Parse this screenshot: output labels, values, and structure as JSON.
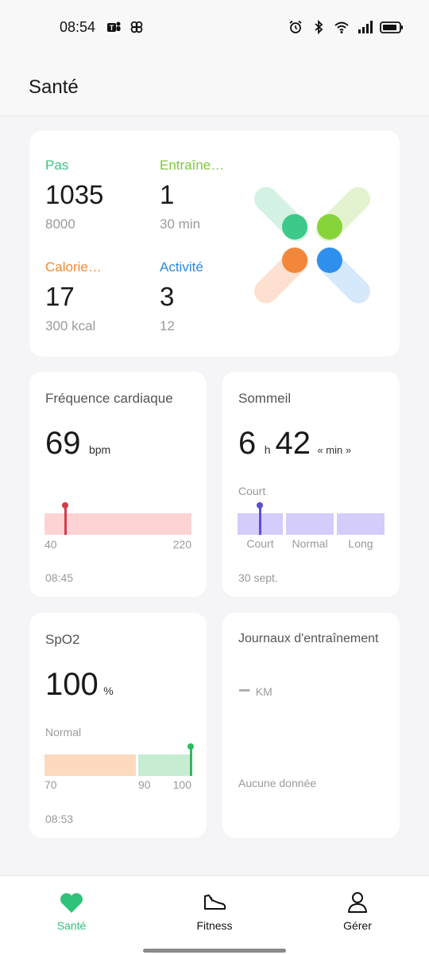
{
  "status_bar": {
    "time": "08:54",
    "icons": [
      "teams-icon",
      "pinwheel-icon",
      "alarm-icon",
      "bluetooth-icon",
      "wifi-icon",
      "signal-icon",
      "battery-icon"
    ]
  },
  "header": {
    "title": "Santé"
  },
  "summary": {
    "steps": {
      "label": "Pas",
      "value": "1035",
      "goal": "8000",
      "color": "#3fbf7f"
    },
    "training": {
      "label": "Entraîne…",
      "value": "1",
      "goal": "30 min",
      "color": "#7dc93c"
    },
    "calories": {
      "label": "Calorie…",
      "value": "17",
      "goal": "300 kcal",
      "color": "#f08a35"
    },
    "activity": {
      "label": "Activité",
      "value": "3",
      "goal": "12",
      "color": "#2b8ae2"
    }
  },
  "heart_rate": {
    "title": "Fréquence cardiaque",
    "value": "69",
    "unit": "bpm",
    "scale_min": "40",
    "scale_max": "220",
    "time": "08:45"
  },
  "sleep": {
    "title": "Sommeil",
    "hours": "6",
    "hours_unit": "h",
    "minutes": "42",
    "minutes_unit": "« min »",
    "status": "Court",
    "ranges": [
      "Court",
      "Normal",
      "Long"
    ],
    "date": "30 sept."
  },
  "spo2": {
    "title": "SpO2",
    "value": "100",
    "unit": "%",
    "status": "Normal",
    "scale": [
      "70",
      "90",
      "100"
    ],
    "time": "08:53"
  },
  "journal": {
    "title": "Journaux d'entraînement",
    "value": "--",
    "unit": "KM",
    "empty": "Aucune donnée"
  },
  "nav": {
    "health": "Santé",
    "fitness": "Fitness",
    "manage": "Gérer",
    "active_color": "#2fc27a"
  }
}
